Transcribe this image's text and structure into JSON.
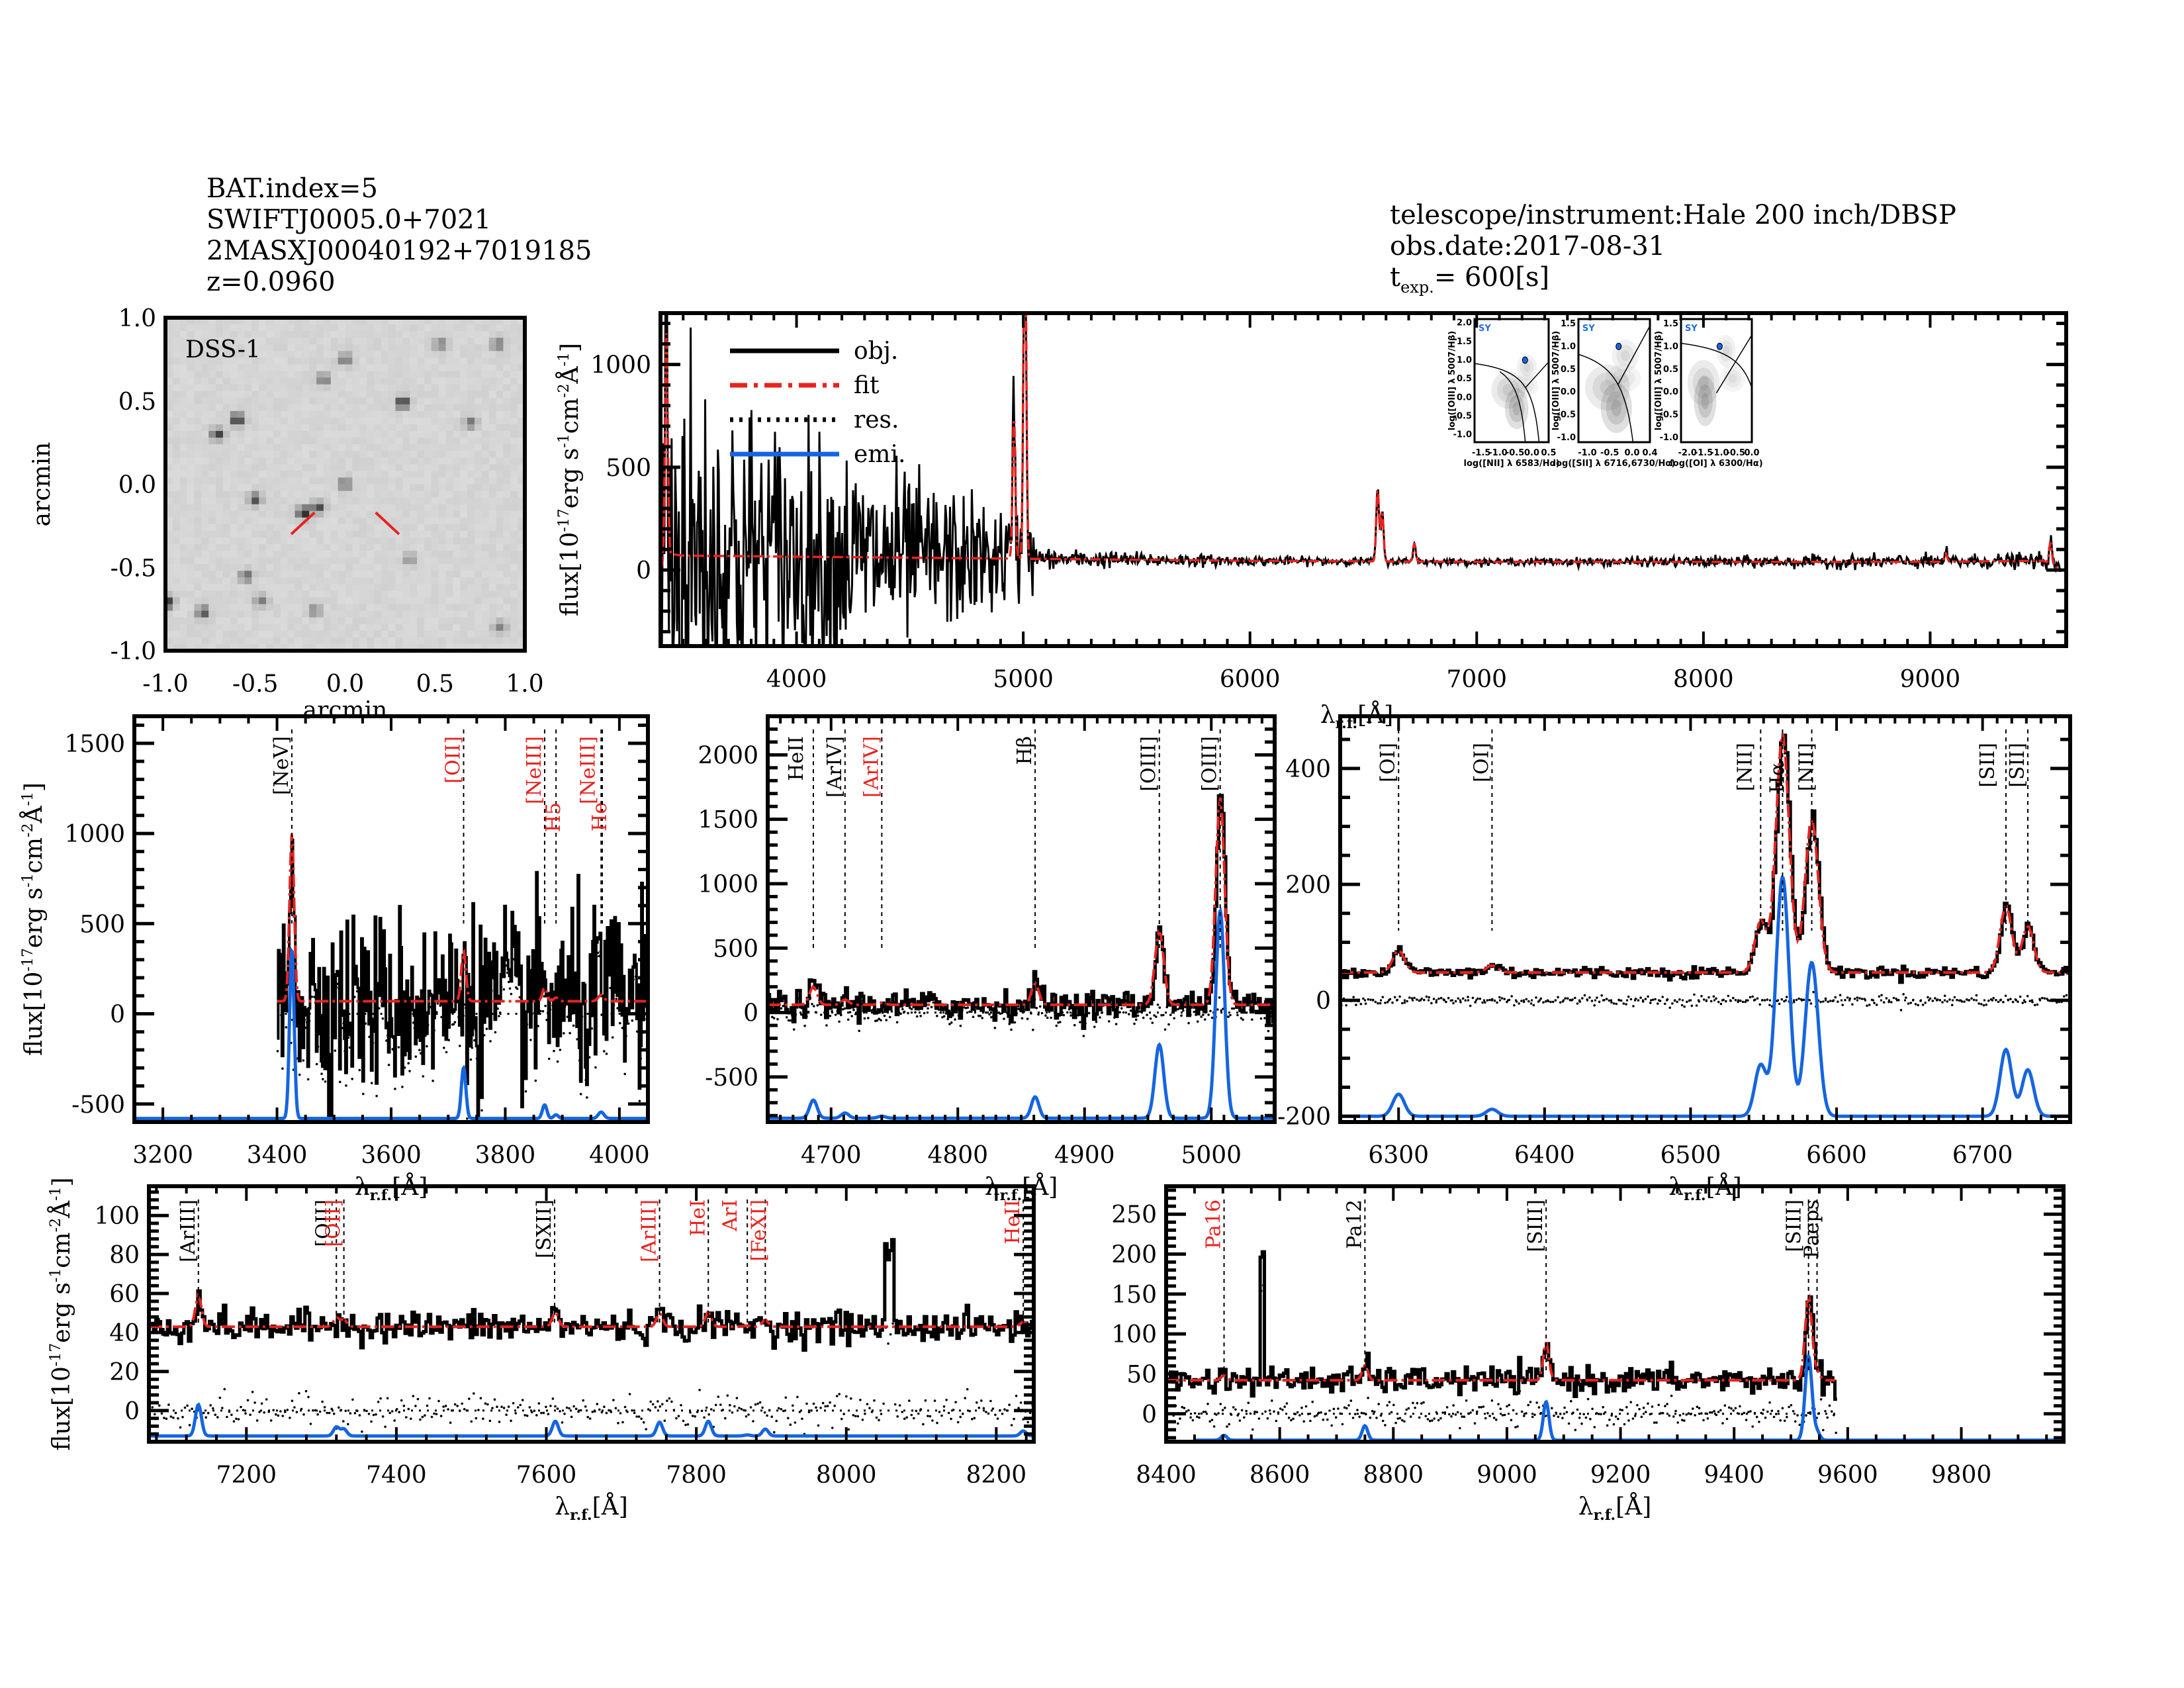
{
  "header_left": {
    "bat_index": "BAT.index=5",
    "swift_name": "SWIFTJ0005.0+7021",
    "counterpart": "2MASXJ00040192+7019185",
    "redshift": "z=0.0960"
  },
  "header_right": {
    "instrument": "telescope/instrument:Hale 200 inch/DBSP",
    "obs_date": "obs.date:2017-08-31",
    "texp_prefix": "t",
    "texp_sub": "exp.",
    "texp_value": "= 600[s]"
  },
  "colors": {
    "object": "#000000",
    "fit": "#e8231f",
    "residual": "#000000",
    "emission": "#1565e0",
    "line_marker_red": "#e8231f",
    "line_marker_black": "#000000",
    "sy_label": "#1f6fd8"
  },
  "chart_data": [
    {
      "id": "dss_image",
      "type": "heatmap",
      "title": "DSS-1",
      "xlabel": "arcmin",
      "ylabel": "arcmin",
      "xlim": [
        -1.0,
        1.0
      ],
      "ylim": [
        -1.0,
        1.0
      ],
      "xticks": [
        "-1.0",
        "-0.5",
        "0.0",
        "0.5",
        "1.0"
      ],
      "yticks": [
        "-1.0",
        "-0.5",
        "0.0",
        "0.5",
        "1.0"
      ],
      "sources": [
        {
          "x": -0.6,
          "y": 0.39,
          "strength": 0.95
        },
        {
          "x": -0.71,
          "y": 0.3,
          "strength": 0.8
        },
        {
          "x": 0.32,
          "y": 0.49,
          "strength": 0.95
        },
        {
          "x": -0.5,
          "y": -0.09,
          "strength": 0.7
        },
        {
          "x": -0.23,
          "y": -0.17,
          "strength": 1.0
        },
        {
          "x": -0.15,
          "y": -0.14,
          "strength": 0.75
        },
        {
          "x": 0.0,
          "y": 0.0,
          "strength": 0.6
        },
        {
          "x": -0.55,
          "y": -0.55,
          "strength": 0.6
        },
        {
          "x": -0.79,
          "y": -0.77,
          "strength": 0.7
        },
        {
          "x": -0.99,
          "y": -0.71,
          "strength": 0.9
        },
        {
          "x": -0.47,
          "y": -0.7,
          "strength": 0.5
        },
        {
          "x": -0.17,
          "y": -0.76,
          "strength": 0.45
        },
        {
          "x": 0.0,
          "y": 0.75,
          "strength": 0.55
        },
        {
          "x": -0.12,
          "y": 0.63,
          "strength": 0.55
        },
        {
          "x": 0.53,
          "y": 0.84,
          "strength": 0.5
        },
        {
          "x": 0.85,
          "y": 0.84,
          "strength": 0.55
        },
        {
          "x": 0.7,
          "y": 0.37,
          "strength": 0.5
        },
        {
          "x": 0.36,
          "y": -0.45,
          "strength": 0.4
        },
        {
          "x": 0.86,
          "y": -0.86,
          "strength": 0.45
        }
      ],
      "markers": [
        {
          "from": [
            -0.17,
            -0.17
          ],
          "to": [
            -0.3,
            -0.3
          ]
        },
        {
          "from": [
            0.17,
            -0.17
          ],
          "to": [
            0.3,
            -0.3
          ]
        }
      ]
    },
    {
      "id": "full_spectrum",
      "type": "line",
      "xlabel": "λr.f.[Å]",
      "ylabel": "flux[10^-17 erg s^-1 cm^-2 Å^-1]",
      "xlim": [
        3400,
        9600
      ],
      "ylim": [
        -370,
        1250
      ],
      "xticks": [
        4000,
        5000,
        6000,
        7000,
        8000,
        9000
      ],
      "yticks": [
        0,
        500,
        1000
      ],
      "legend": {
        "placement": "top-left",
        "entries": [
          {
            "label": "obj.",
            "style": "solid-black"
          },
          {
            "label": "fit",
            "style": "dashdot-red"
          },
          {
            "label": "res.",
            "style": "dotted-black"
          },
          {
            "label": "emi.",
            "style": "solid-blue"
          }
        ]
      },
      "continuum": [
        [
          3400,
          0
        ],
        [
          3430,
          80
        ],
        [
          3500,
          70
        ],
        [
          4000,
          65
        ],
        [
          4500,
          60
        ],
        [
          5000,
          55
        ],
        [
          6000,
          45
        ],
        [
          7000,
          40
        ],
        [
          8000,
          40
        ],
        [
          9000,
          40
        ],
        [
          9500,
          45
        ],
        [
          9560,
          10
        ]
      ],
      "noise": [
        [
          3400,
          600
        ],
        [
          3700,
          420
        ],
        [
          4000,
          300
        ],
        [
          4500,
          200
        ],
        [
          5000,
          110
        ],
        [
          5100,
          40
        ],
        [
          6000,
          18
        ],
        [
          7000,
          12
        ],
        [
          8500,
          25
        ],
        [
          9500,
          30
        ]
      ],
      "lines": [
        {
          "wave": 3426,
          "flux": 1100
        },
        {
          "wave": 4959,
          "flux": 700
        },
        {
          "wave": 5007,
          "flux": 1800
        },
        {
          "wave": 6563,
          "flux": 360
        },
        {
          "wave": 6583,
          "flux": 240
        },
        {
          "wave": 6725,
          "flux": 90
        },
        {
          "wave": 9069,
          "flux": 40
        },
        {
          "wave": 9531,
          "flux": 110
        }
      ],
      "insets": [
        {
          "type": "scatter",
          "title": "SY",
          "xlabel": "log([NII] λ 6583/Hα)",
          "ylabel": "log([OIII] λ 5007/Hβ)",
          "xlim": [
            -1.7,
            0.5
          ],
          "ylim": [
            -1.2,
            2.1
          ],
          "xticks": [
            "-1.5",
            "-1.0",
            "-0.5",
            "0.0",
            "0.5"
          ],
          "yticks": [
            "-1.0",
            "-0.5",
            "0.0",
            "0.5",
            "1.0",
            "1.5",
            "2.0"
          ],
          "point": {
            "x": -0.2,
            "y": 1.0
          }
        },
        {
          "type": "scatter",
          "title": "SY",
          "xlabel": "log([SII] λ 6716,6730/Hα)",
          "ylabel": "log([OIII] λ 5007/Hβ)",
          "xlim": [
            -1.2,
            0.4
          ],
          "ylim": [
            -1.1,
            1.6
          ],
          "xticks": [
            "-1.0",
            "-0.5",
            "0.0",
            "0.4"
          ],
          "yticks": [
            "-1.0",
            "-0.5",
            "0.0",
            "0.5",
            "1.0",
            "1.5"
          ],
          "point": {
            "x": -0.3,
            "y": 1.0
          }
        },
        {
          "type": "scatter",
          "title": "SY",
          "xlabel": "log([OI] λ 6300/Hα)",
          "ylabel": "log([OIII] λ 5007/Hβ)",
          "xlim": [
            -2.2,
            0.0
          ],
          "ylim": [
            -1.1,
            1.6
          ],
          "xticks": [
            "-2.0",
            "-1.5",
            "-1.0",
            "-0.5",
            "0.0"
          ],
          "yticks": [
            "-1.0",
            "-0.5",
            "0.0",
            "0.5",
            "1.0",
            "1.5"
          ],
          "point": {
            "x": -1.0,
            "y": 1.0
          }
        }
      ]
    },
    {
      "id": "zoom_nev",
      "type": "line",
      "xlabel": "λr.f.[Å]",
      "ylabel": "flux[10^-17 erg s^-1 cm^-2 Å^-1]",
      "xlim": [
        3150,
        4050
      ],
      "ylim": [
        -600,
        1650
      ],
      "xticks": [
        3200,
        3400,
        3600,
        3800,
        4000
      ],
      "yticks": [
        -500,
        0,
        500,
        1000,
        1500
      ],
      "data_start": 3400,
      "continuum": 70,
      "noise": 250,
      "emission_baseline": -580,
      "line_markers": [
        {
          "label": "[NeV]",
          "wave": 3426,
          "color": "black"
        },
        {
          "label": "[OII]",
          "wave": 3727,
          "color": "red"
        },
        {
          "label": "[NeIII]",
          "wave": 3869,
          "color": "red"
        },
        {
          "label": "H5",
          "wave": 3889,
          "color": "red"
        },
        {
          "label": "[NeIII]",
          "wave": 3968,
          "color": "red"
        },
        {
          "label": "He",
          "wave": 3970,
          "color": "red"
        }
      ],
      "emission_lines": [
        {
          "wave": 3426,
          "peak": 930,
          "sigma": 4
        },
        {
          "wave": 3727,
          "peak": 280,
          "sigma": 4
        },
        {
          "wave": 3869,
          "peak": 75,
          "sigma": 4
        },
        {
          "wave": 3889,
          "peak": 20,
          "sigma": 4
        },
        {
          "wave": 3968,
          "peak": 35,
          "sigma": 5
        }
      ]
    },
    {
      "id": "zoom_hbeta_oiii",
      "type": "line",
      "xlabel": "λr.f.[Å]",
      "ylabel": "",
      "xlim": [
        4650,
        5050
      ],
      "ylim": [
        -850,
        2300
      ],
      "xticks": [
        4700,
        4800,
        4900,
        5000
      ],
      "yticks": [
        -500,
        0,
        500,
        1000,
        1500,
        2000
      ],
      "continuum": 60,
      "noise": 55,
      "emission_baseline": -820,
      "line_markers": [
        {
          "label": "HeII",
          "wave": 4686,
          "color": "black"
        },
        {
          "label": "[ArIV]",
          "wave": 4711,
          "color": "black"
        },
        {
          "label": "[ArIV]",
          "wave": 4740,
          "color": "red"
        },
        {
          "label": "Hβ",
          "wave": 4861,
          "color": "black"
        },
        {
          "label": "[OIII]",
          "wave": 4959,
          "color": "black"
        },
        {
          "label": "[OIII]",
          "wave": 5007,
          "color": "black"
        }
      ],
      "emission_lines": [
        {
          "wave": 4686,
          "peak": 140,
          "sigma": 3
        },
        {
          "wave": 4711,
          "peak": 40,
          "sigma": 3
        },
        {
          "wave": 4740,
          "peak": 15,
          "sigma": 3
        },
        {
          "wave": 4861,
          "peak": 165,
          "sigma": 3
        },
        {
          "wave": 4959,
          "peak": 570,
          "sigma": 3.5
        },
        {
          "wave": 5007,
          "peak": 1610,
          "sigma": 3.5
        }
      ]
    },
    {
      "id": "zoom_halpha",
      "type": "line",
      "xlabel": "λr.f.[Å]",
      "ylabel": "",
      "xlim": [
        6260,
        6760
      ],
      "ylim": [
        -210,
        490
      ],
      "xticks": [
        6300,
        6400,
        6500,
        6600,
        6700
      ],
      "yticks": [
        -200,
        0,
        200,
        400
      ],
      "continuum": 48,
      "noise": 5,
      "emission_baseline": -200,
      "line_markers": [
        {
          "label": "[OI]",
          "wave": 6300,
          "color": "black"
        },
        {
          "label": "[OI]",
          "wave": 6364,
          "color": "black"
        },
        {
          "label": "[NII]",
          "wave": 6548,
          "color": "black"
        },
        {
          "label": "Hα",
          "wave": 6563,
          "color": "black"
        },
        {
          "label": "[NII]",
          "wave": 6583,
          "color": "black"
        },
        {
          "label": "[SII]",
          "wave": 6716,
          "color": "black"
        },
        {
          "label": "[SII]",
          "wave": 6731,
          "color": "black"
        }
      ],
      "emission_lines": [
        {
          "wave": 6300,
          "peak": 38,
          "sigma": 4
        },
        {
          "wave": 6364,
          "peak": 12,
          "sigma": 4
        },
        {
          "wave": 6548,
          "peak": 88,
          "sigma": 4
        },
        {
          "wave": 6563,
          "peak": 412,
          "sigma": 4.5
        },
        {
          "wave": 6583,
          "peak": 265,
          "sigma": 4.5
        },
        {
          "wave": 6716,
          "peak": 115,
          "sigma": 4
        },
        {
          "wave": 6731,
          "peak": 80,
          "sigma": 4
        }
      ]
    },
    {
      "id": "zoom_7000_8250",
      "type": "line",
      "xlabel": "λr.f.[Å]",
      "ylabel": "flux[10^-17 erg s^-1 cm^-2 Å^-1]",
      "xlim": [
        7070,
        8250
      ],
      "ylim": [
        -16,
        115
      ],
      "xticks": [
        7200,
        7400,
        7600,
        7800,
        8000,
        8200
      ],
      "yticks": [
        0,
        20,
        40,
        60,
        80,
        100
      ],
      "continuum": 43,
      "noise": 4,
      "emission_baseline": -13,
      "line_markers": [
        {
          "label": "[ArIII]",
          "wave": 7136,
          "color": "black"
        },
        {
          "label": "[OII]",
          "wave": 7320,
          "color": "black"
        },
        {
          "label": "[OII]",
          "wave": 7330,
          "color": "red"
        },
        {
          "label": "[SXII]",
          "wave": 7611,
          "color": "black"
        },
        {
          "label": "[ArIII]",
          "wave": 7751,
          "color": "red"
        },
        {
          "label": "HeI",
          "wave": 7816,
          "color": "red"
        },
        {
          "label": "ArI",
          "wave": 7868,
          "color": "red"
        },
        {
          "label": "[FeXI]",
          "wave": 7892,
          "color": "red"
        },
        {
          "label": "HeII",
          "wave": 8236,
          "color": "red"
        }
      ],
      "emission_lines": [
        {
          "wave": 7136,
          "peak": 16,
          "sigma": 4
        },
        {
          "wave": 7320,
          "peak": 4.5,
          "sigma": 4
        },
        {
          "wave": 7330,
          "peak": 3.5,
          "sigma": 4
        },
        {
          "wave": 7612,
          "peak": 7.5,
          "sigma": 4
        },
        {
          "wave": 7751,
          "peak": 7,
          "sigma": 4
        },
        {
          "wave": 7816,
          "peak": 7.5,
          "sigma": 4
        },
        {
          "wave": 7868,
          "peak": 0.5,
          "sigma": 4
        },
        {
          "wave": 7892,
          "peak": 3.5,
          "sigma": 4
        },
        {
          "wave": 8236,
          "peak": 2.5,
          "sigma": 4
        }
      ]
    },
    {
      "id": "zoom_8400_9980",
      "type": "line",
      "xlabel": "λr.f.[Å]",
      "ylabel": "",
      "xlim": [
        8400,
        9980
      ],
      "ylim": [
        -35,
        285
      ],
      "xticks": [
        8400,
        8600,
        8800,
        9000,
        9200,
        9400,
        9600,
        9800
      ],
      "yticks": [
        0,
        50,
        100,
        150,
        200,
        250
      ],
      "data_end": 9580,
      "continuum": 42,
      "noise": 8,
      "emission_baseline": -33,
      "line_markers": [
        {
          "label": "Pa16",
          "wave": 8502,
          "color": "red"
        },
        {
          "label": "Pa12",
          "wave": 8750,
          "color": "black"
        },
        {
          "label": "[SIII]",
          "wave": 9069,
          "color": "black"
        },
        {
          "label": "[SIII]",
          "wave": 9531,
          "color": "black"
        },
        {
          "label": "Paeps",
          "wave": 9546,
          "color": "black"
        }
      ],
      "emission_lines": [
        {
          "wave": 8502,
          "peak": 6,
          "sigma": 5
        },
        {
          "wave": 8750,
          "peak": 18,
          "sigma": 5
        },
        {
          "wave": 9069,
          "peak": 48,
          "sigma": 5
        },
        {
          "wave": 9531,
          "peak": 105,
          "sigma": 6
        },
        {
          "wave": 9546,
          "peak": 10,
          "sigma": 5
        }
      ]
    }
  ]
}
